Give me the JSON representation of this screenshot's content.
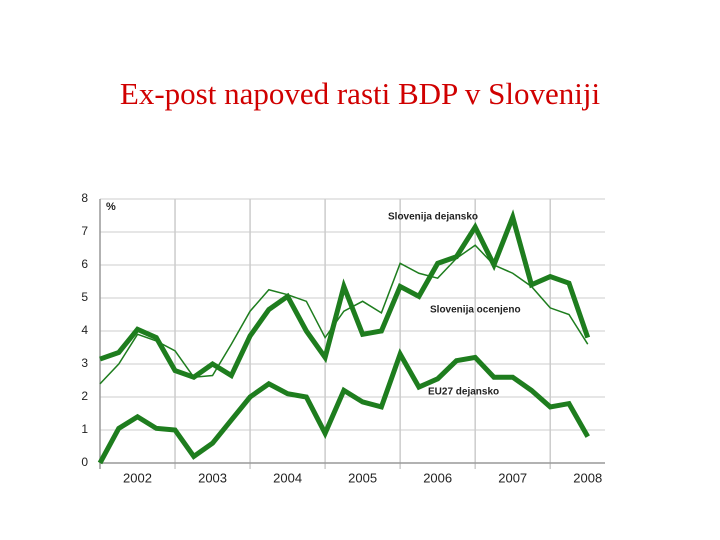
{
  "chart_data": {
    "type": "line",
    "title": "Ex-post napoved rasti BDP v Sloveniji",
    "ylabel": "%",
    "x": [
      2002,
      2002.25,
      2002.5,
      2002.75,
      2003,
      2003.25,
      2003.5,
      2003.75,
      2004,
      2004.25,
      2004.5,
      2004.75,
      2005,
      2005.25,
      2005.5,
      2005.75,
      2006,
      2006.25,
      2006.5,
      2006.75,
      2007,
      2007.25,
      2007.5,
      2007.75,
      2008,
      2008.25,
      2008.5
    ],
    "series": [
      {
        "name": "Slovenija dejansko",
        "color": "#1e7d1e",
        "width": 5,
        "values": [
          3.15,
          3.35,
          4.05,
          3.8,
          2.8,
          2.6,
          3.0,
          2.65,
          3.85,
          4.65,
          5.05,
          4.0,
          3.2,
          5.35,
          3.9,
          4.0,
          5.35,
          5.05,
          6.05,
          6.25,
          7.15,
          6.0,
          7.45,
          5.4,
          5.65,
          5.45,
          3.8
        ]
      },
      {
        "name": "Slovenija ocenjeno",
        "color": "#1e7d1e",
        "width": 1.5,
        "values": [
          2.4,
          3.0,
          3.9,
          3.7,
          3.4,
          2.6,
          2.65,
          3.6,
          4.6,
          5.25,
          5.1,
          4.9,
          3.8,
          4.6,
          4.9,
          4.55,
          6.05,
          5.75,
          5.6,
          6.2,
          6.6,
          6.0,
          5.75,
          5.35,
          4.7,
          4.5,
          3.6
        ]
      },
      {
        "name": "EU27 dejansko",
        "color": "#1e7d1e",
        "width": 5,
        "values": [
          0,
          1.05,
          1.4,
          1.05,
          1.0,
          0.2,
          0.6,
          1.3,
          2.0,
          2.4,
          2.1,
          2.0,
          0.9,
          2.2,
          1.85,
          1.7,
          3.3,
          2.3,
          2.55,
          3.1,
          3.2,
          2.6,
          2.6,
          2.2,
          1.7,
          1.8,
          0.8
        ]
      }
    ],
    "xlim": [
      2002,
      2008.73
    ],
    "xticks": [
      {
        "value": 2002.5,
        "label": "2002"
      },
      {
        "value": 2003.5,
        "label": "2003"
      },
      {
        "value": 2004.5,
        "label": "2004"
      },
      {
        "value": 2005.5,
        "label": "2005"
      },
      {
        "value": 2006.5,
        "label": "2006"
      },
      {
        "value": 2007.5,
        "label": "2007"
      },
      {
        "value": 2008.5,
        "label": "2008"
      }
    ],
    "ylim": [
      0,
      8
    ],
    "yticks": [
      0,
      1,
      2,
      3,
      4,
      5,
      6,
      7,
      8
    ],
    "grid": true
  }
}
